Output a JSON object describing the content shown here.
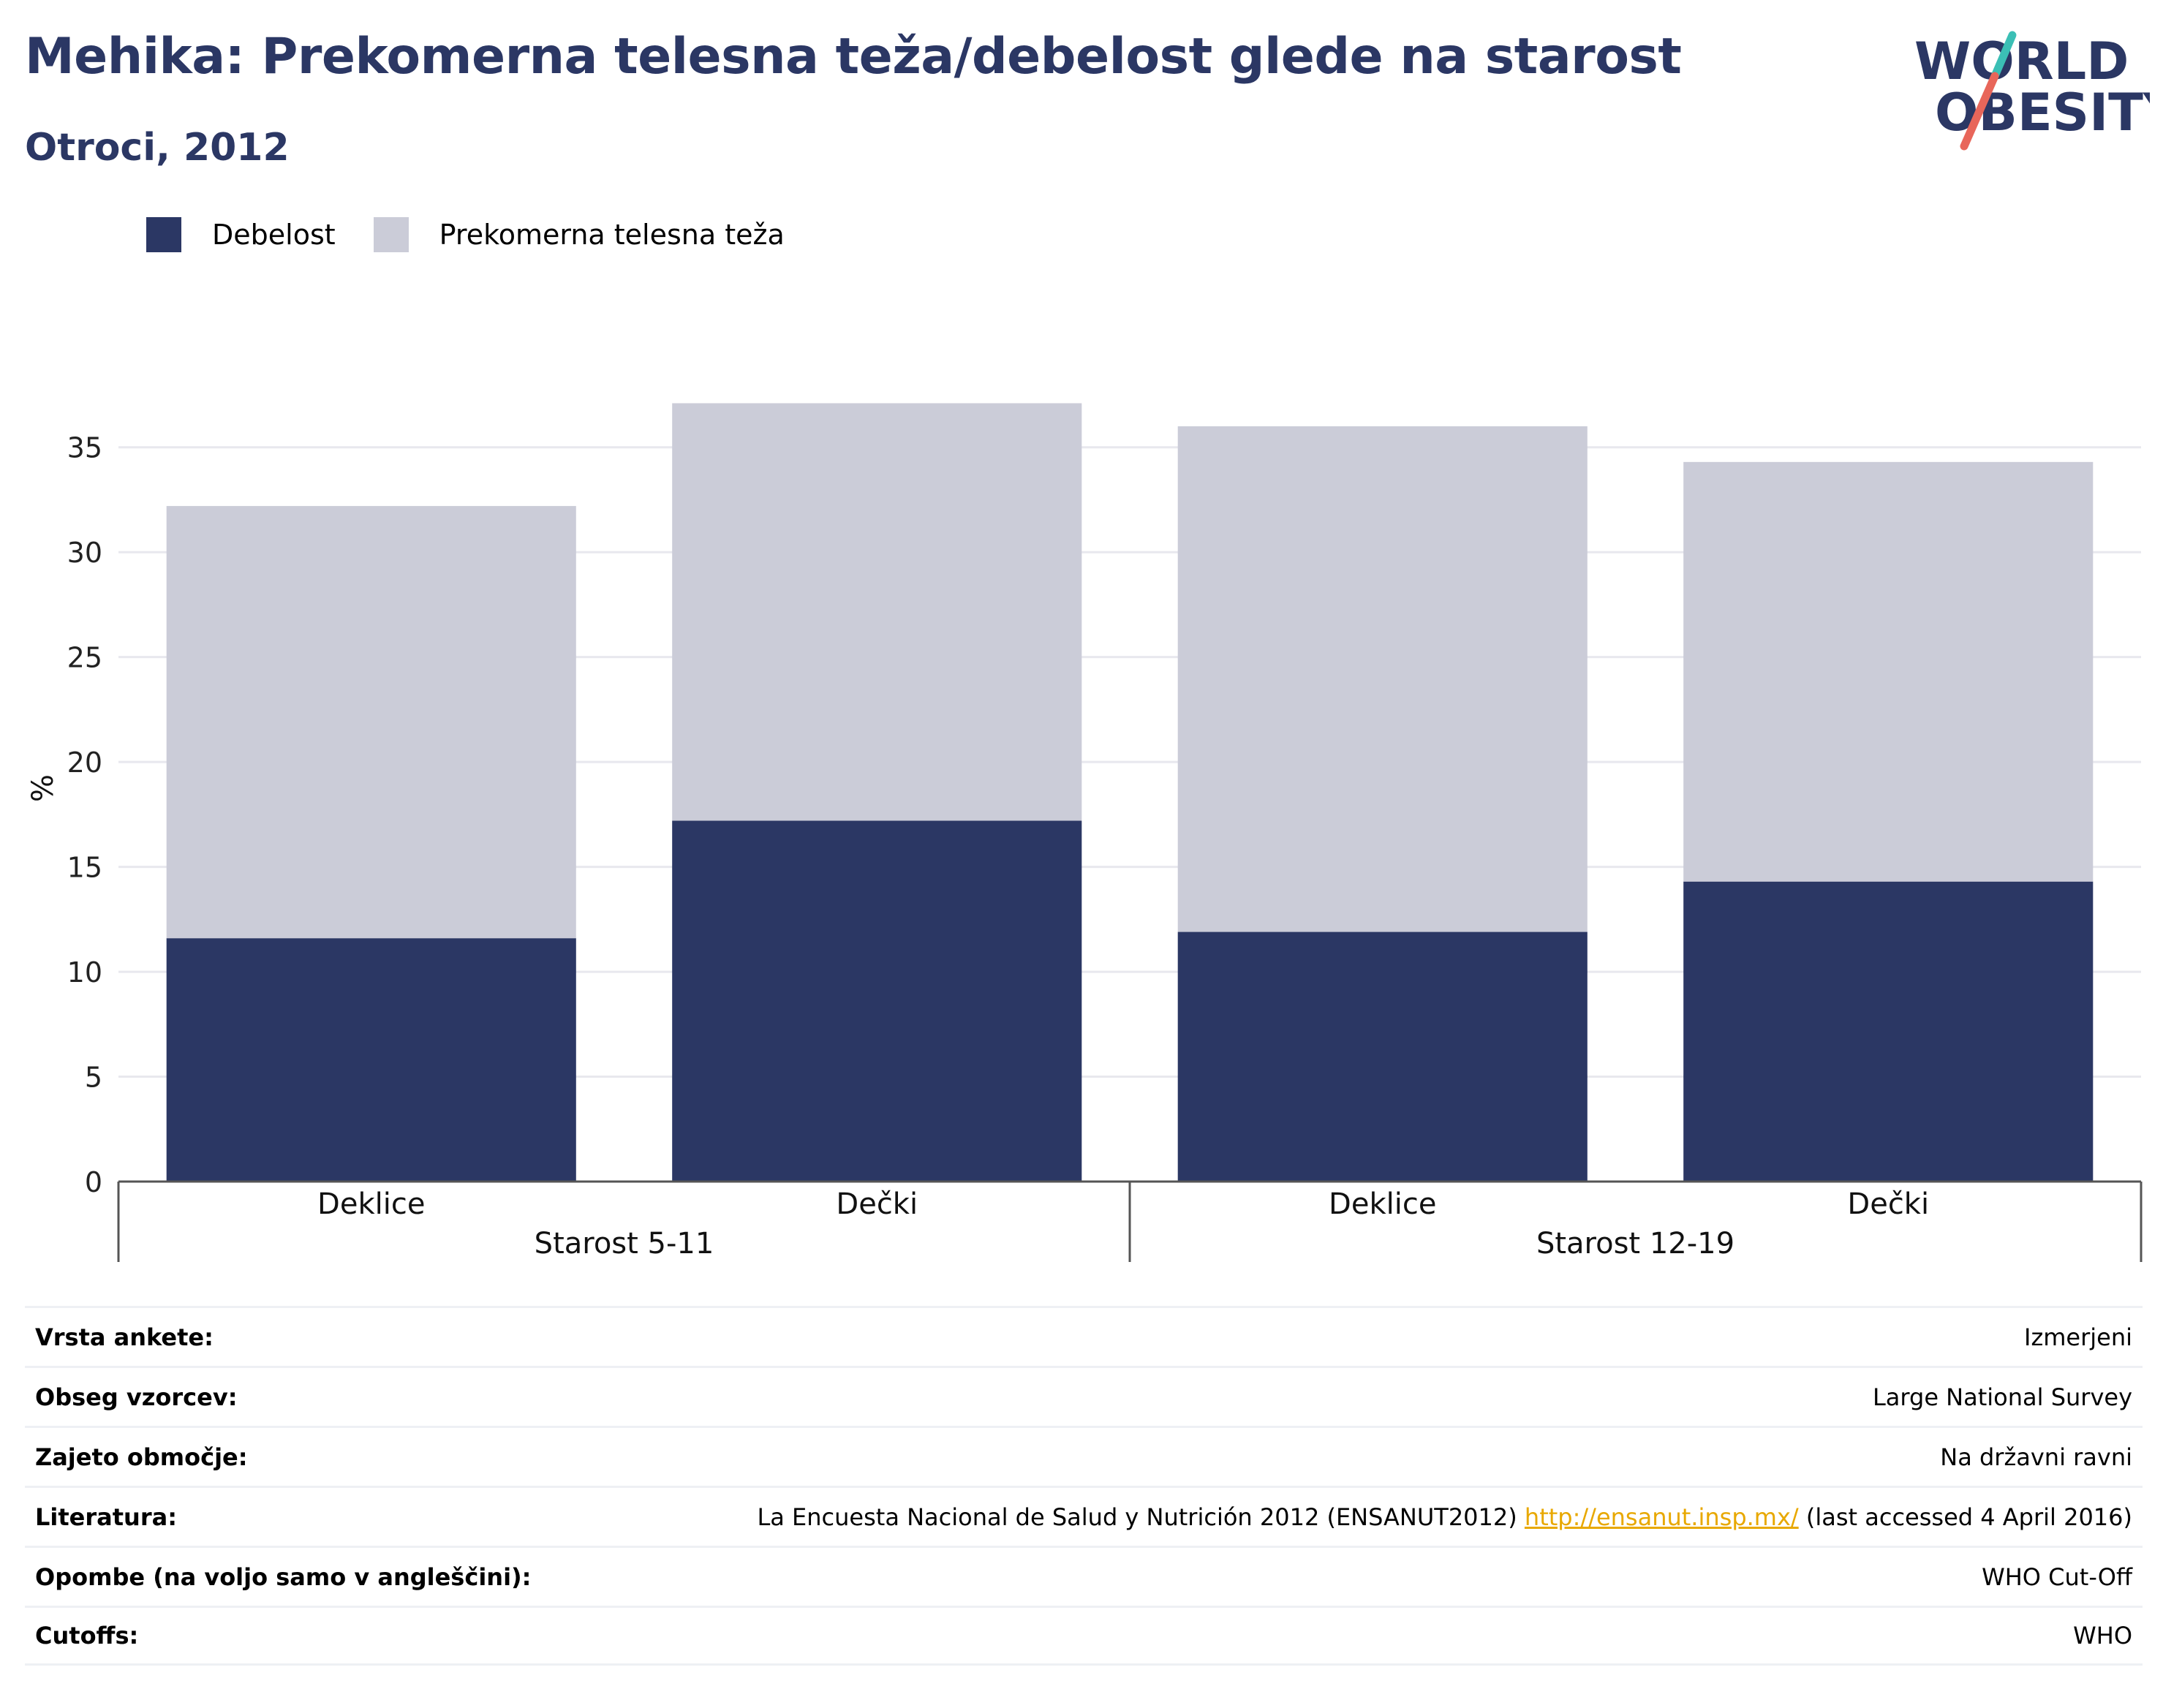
{
  "header": {
    "title": "Mehika: Prekomerna telesna teža/debelost glede na starost",
    "subtitle": "Otroci, 2012"
  },
  "logo": {
    "line1": "WORLD",
    "line2": "OBESITY",
    "colors": {
      "text": "#2b3764",
      "slash_top": "#3bbfb5",
      "slash_bottom": "#e8665a"
    }
  },
  "colors": {
    "obesity": "#2b3764",
    "overweight": "#cbccd8",
    "grid": "#e8e8ee",
    "axis": "#555555"
  },
  "chart_data": {
    "type": "bar",
    "stacked": true,
    "ylabel": "%",
    "ylim": [
      0,
      37.5
    ],
    "yticks": [
      0,
      5,
      10,
      15,
      20,
      25,
      30,
      35
    ],
    "legend": [
      "Debelost",
      "Prekomerna telesna teža"
    ],
    "legend_position": "top-left",
    "grid": true,
    "groups": [
      {
        "label": "Starost 5-11",
        "categories": [
          "Deklice",
          "Dečki"
        ]
      },
      {
        "label": "Starost 12-19",
        "categories": [
          "Deklice",
          "Dečki"
        ]
      }
    ],
    "categories": [
      "Deklice",
      "Dečki",
      "Deklice",
      "Dečki"
    ],
    "series": [
      {
        "name": "Debelost",
        "values": [
          11.6,
          17.2,
          11.9,
          14.3
        ]
      },
      {
        "name": "Prekomerna telesna teža",
        "values": [
          20.6,
          19.9,
          24.1,
          20.0
        ]
      }
    ]
  },
  "info": [
    {
      "label": "Vrsta ankete:",
      "value": "Izmerjeni"
    },
    {
      "label": "Obseg vzorcev:",
      "value": "Large National Survey"
    },
    {
      "label": "Zajeto območje:",
      "value": "Na državni ravni"
    },
    {
      "label": "Literatura:",
      "value_pre": "La Encuesta Nacional de Salud y Nutrición 2012 (ENSANUT2012)",
      "link": "http://ensanut.insp.mx/",
      "value_post": "(last accessed 4 April 2016)"
    },
    {
      "label": "Opombe (na voljo samo v angleščini):",
      "value": "WHO Cut-Off"
    },
    {
      "label": "Cutoffs:",
      "value": "WHO"
    }
  ]
}
